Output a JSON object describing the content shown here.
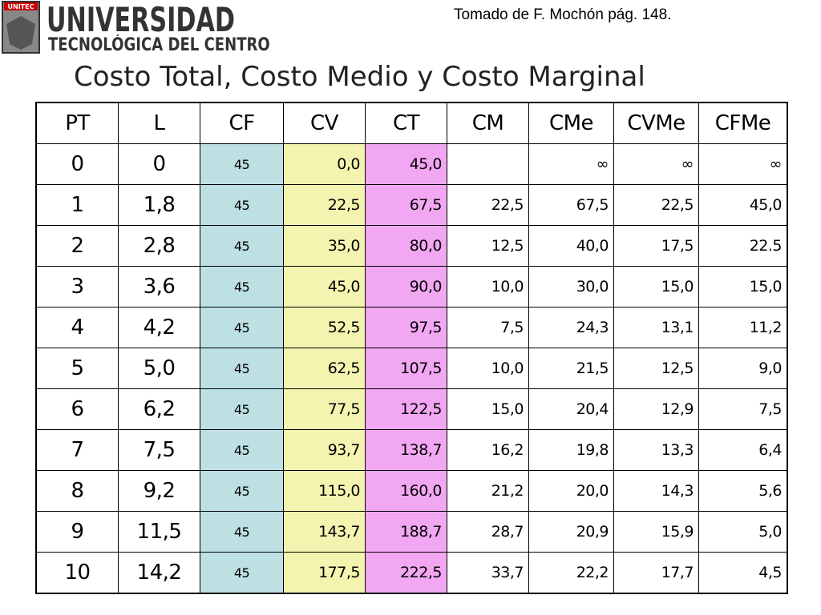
{
  "header": {
    "logo_badge": "UNITEC",
    "logo_title": "UNIVERSIDAD",
    "logo_subtitle": "TECNOLÓGICA DEL CENTRO",
    "source": "Tomado de F. Mochón  pág. 148."
  },
  "title": "Costo Total, Costo Medio y Costo Marginal",
  "table": {
    "columns": [
      "PT",
      "L",
      "CF",
      "CV",
      "CT",
      "CM",
      "CMe",
      "CVMe",
      "CFMe"
    ],
    "rows": [
      [
        "0",
        "0",
        "45",
        "0,0",
        "45,0",
        null,
        "∞",
        "∞",
        "∞"
      ],
      [
        "1",
        "1,8",
        "45",
        "22,5",
        "67,5",
        "22,5",
        "67,5",
        "22,5",
        "45,0"
      ],
      [
        "2",
        "2,8",
        "45",
        "35,0",
        "80,0",
        "12,5",
        "40,0",
        "17,5",
        "22.5"
      ],
      [
        "3",
        "3,6",
        "45",
        "45,0",
        "90,0",
        "10,0",
        "30,0",
        "15,0",
        "15,0"
      ],
      [
        "4",
        "4,2",
        "45",
        "52,5",
        "97,5",
        "7,5",
        "24,3",
        "13,1",
        "11,2"
      ],
      [
        "5",
        "5,0",
        "45",
        "62,5",
        "107,5",
        "10,0",
        "21,5",
        "12,5",
        "9,0"
      ],
      [
        "6",
        "6,2",
        "45",
        "77,5",
        "122,5",
        "15,0",
        "20,4",
        "12,9",
        "7,5"
      ],
      [
        "7",
        "7,5",
        "45",
        "93,7",
        "138,7",
        "16,2",
        "19,8",
        "13,3",
        "6,4"
      ],
      [
        "8",
        "9,2",
        "45",
        "115,0",
        "160,0",
        "21,2",
        "20,0",
        "14,3",
        "5,6"
      ],
      [
        "9",
        "11,5",
        "45",
        "143,7",
        "188,7",
        "28,7",
        "20,9",
        "15,9",
        "5,0"
      ],
      [
        "10",
        "14,2",
        "45",
        "177,5",
        "222,5",
        "33,7",
        "22,2",
        "17,7",
        "4,5"
      ]
    ]
  }
}
